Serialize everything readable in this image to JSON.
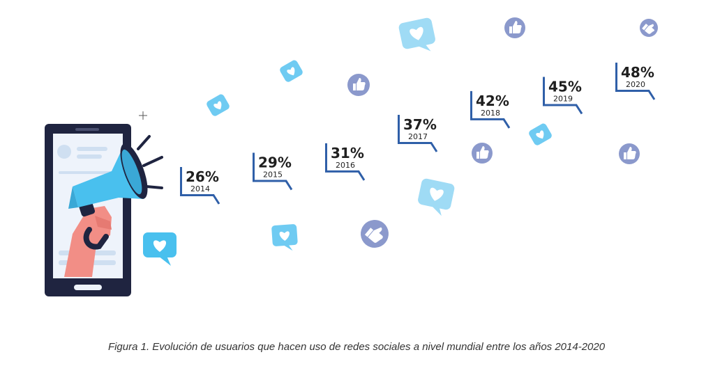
{
  "caption": "Figura 1. Evolución de usuarios que hacen uso de redes sociales a nivel mundial entre los años 2014-2020",
  "colors": {
    "bubble_border": "#2f5fa8",
    "phone": "#1f2440",
    "megaphone": "#49c0ee",
    "hand": "#f28e86",
    "heart_bubble": "#6fcbf2",
    "like_circle": "#8b99cc"
  },
  "icons": [
    "megaphone-icon",
    "phone-icon",
    "heart-bubble-icon",
    "thumbs-up-icon"
  ],
  "chart_data": {
    "type": "scatter",
    "categories": [
      "2014",
      "2015",
      "2016",
      "2017",
      "2018",
      "2019",
      "2020"
    ],
    "values": [
      26,
      29,
      31,
      37,
      42,
      45,
      48
    ],
    "labels": [
      "26%",
      "29%",
      "31%",
      "37%",
      "42%",
      "45%",
      "48%"
    ],
    "unit": "%"
  }
}
